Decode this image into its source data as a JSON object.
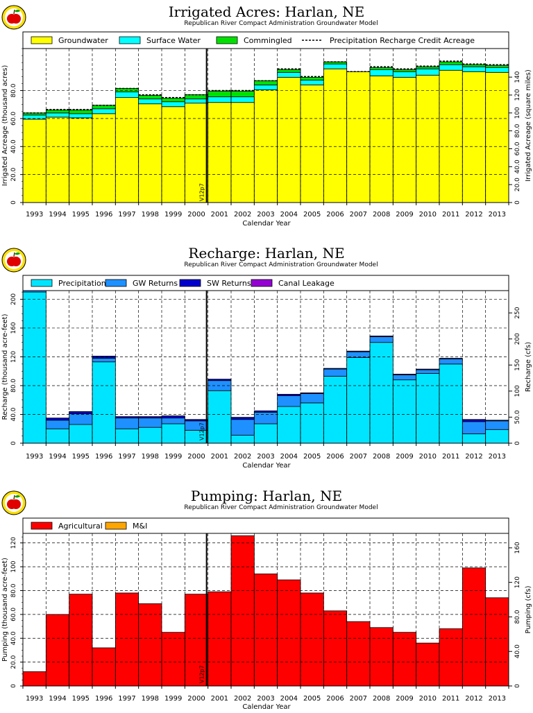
{
  "x_axis_label": "Calendar Year",
  "subtitle": "Republican River Compact Administration Groundwater Model",
  "version_marker": "V12p7",
  "colors": {
    "groundwater": "#ffff00",
    "surface_water": "#00ffff",
    "commingled": "#00e000",
    "precipitation": "#00e5ff",
    "gw_returns": "#1e90ff",
    "sw_returns": "#0000cd",
    "canal_leakage": "#9400d3",
    "agricultural": "#ff0000",
    "mi": "#ffa500",
    "version_line": "#000000",
    "grid": "#000000"
  },
  "chart_data": [
    {
      "id": "irrigated",
      "type": "area",
      "title": "Irrigated Acres: Harlan, NE",
      "subtitle": "Republican River Compact Administration Groundwater Model",
      "xlabel": "Calendar Year",
      "ylabel": "Irrigated Acreage (thousand acres)",
      "y2label": "Irrigated Acreage (square miles)",
      "categories": [
        "1993",
        "1994",
        "1995",
        "1996",
        "1997",
        "1998",
        "1999",
        "2000",
        "2001",
        "2002",
        "2003",
        "2004",
        "2005",
        "2006",
        "2007",
        "2008",
        "2009",
        "2010",
        "2011",
        "2012",
        "2013"
      ],
      "ylim": [
        0,
        110
      ],
      "yticks": [
        0,
        20,
        40,
        60,
        80
      ],
      "yticklabels": [
        "0",
        "20.0",
        "40.0",
        "60.0",
        "80.0"
      ],
      "y2ticks": [
        0,
        20,
        40,
        60,
        80,
        100,
        120,
        140
      ],
      "y2ticklabels": [
        "0",
        "20.0",
        "40.0",
        "60.0",
        "80.0",
        "100",
        "120",
        "140"
      ],
      "y2scale": 1.5625,
      "series": [
        {
          "name": "Groundwater",
          "color_key": "groundwater",
          "values": [
            59.5,
            61,
            60.5,
            63.5,
            75,
            70.5,
            68.5,
            71,
            71.5,
            71.5,
            80.5,
            89.5,
            84,
            95.5,
            93.5,
            90.5,
            89.5,
            91,
            94.5,
            93.5,
            93
          ]
        },
        {
          "name": "Surface Water",
          "color_key": "surface_water",
          "values": [
            3,
            3,
            3,
            3.5,
            4,
            3.5,
            3.5,
            3,
            4,
            4,
            3.5,
            3.5,
            3.5,
            3.5,
            0,
            4.5,
            4,
            4.5,
            4,
            3.5,
            3.5
          ]
        },
        {
          "name": "Commingled",
          "color_key": "commingled",
          "values": [
            1.5,
            2,
            2.5,
            2.5,
            2.5,
            2.5,
            2.5,
            3,
            4,
            4,
            3,
            2,
            2,
            1.5,
            0,
            1.5,
            1.5,
            1.5,
            2,
            1.5,
            1.5
          ]
        }
      ],
      "line_series": {
        "name": "Precipitation Recharge Credit Acreage",
        "values": [
          64,
          66.5,
          66.5,
          69.5,
          81.5,
          77,
          75,
          77,
          80,
          80,
          87,
          95.5,
          90,
          100.5,
          93.5,
          97,
          95.5,
          97.5,
          101,
          99,
          98.5
        ]
      }
    },
    {
      "id": "recharge",
      "type": "area",
      "title": "Recharge: Harlan, NE",
      "subtitle": "Republican River Compact Administration Groundwater Model",
      "xlabel": "Calendar Year",
      "ylabel": "Recharge (thousand acre-feet)",
      "y2label": "Recharge (cfs)",
      "categories": [
        "1993",
        "1994",
        "1995",
        "1996",
        "1997",
        "1998",
        "1999",
        "2000",
        "2001",
        "2002",
        "2003",
        "2004",
        "2005",
        "2006",
        "2007",
        "2008",
        "2009",
        "2010",
        "2011",
        "2012",
        "2013"
      ],
      "ylim": [
        0,
        212
      ],
      "yticks": [
        0,
        40,
        80,
        120,
        160,
        200
      ],
      "yticklabels": [
        "0",
        "40.0",
        "80.0",
        "120",
        "160",
        "200"
      ],
      "y2ticks": [
        0,
        50,
        100,
        150,
        200,
        250
      ],
      "y2ticklabels": [
        "0",
        "50.0",
        "100",
        "150",
        "200",
        "250"
      ],
      "y2scale": 1.381,
      "series": [
        {
          "name": "Precipitation",
          "color_key": "precipitation",
          "values": [
            210,
            20,
            26,
            113,
            20,
            22,
            27,
            18,
            73,
            11,
            27,
            51,
            56,
            93,
            119,
            140,
            88,
            97,
            110,
            13,
            19
          ]
        },
        {
          "name": "GW Returns",
          "color_key": "gw_returns",
          "values": [
            2,
            12,
            15,
            5,
            15,
            13,
            8,
            13,
            14,
            22,
            16,
            15,
            13,
            10,
            8,
            8,
            7,
            5,
            7,
            17,
            12
          ]
        },
        {
          "name": "SW Returns",
          "color_key": "sw_returns",
          "values": [
            0,
            3,
            3,
            3,
            2,
            2,
            3,
            2,
            2,
            3,
            2,
            2,
            1,
            1,
            1,
            1,
            1,
            1,
            1,
            3,
            1
          ]
        },
        {
          "name": "Canal Leakage",
          "color_key": "canal_leakage",
          "values": [
            0,
            0,
            0,
            0,
            0,
            0,
            0,
            0,
            0,
            0,
            0,
            0,
            0,
            0,
            0,
            0,
            0,
            0,
            0,
            0,
            0
          ]
        }
      ]
    },
    {
      "id": "pumping",
      "type": "area",
      "title": "Pumping: Harlan, NE",
      "subtitle": "Republican River Compact Administration Groundwater Model",
      "xlabel": "Calendar Year",
      "ylabel": "Pumping (thousand acre-feet)",
      "y2label": "Pumping (cfs)",
      "categories": [
        "1993",
        "1994",
        "1995",
        "1996",
        "1997",
        "1998",
        "1999",
        "2000",
        "2001",
        "2002",
        "2003",
        "2004",
        "2005",
        "2006",
        "2007",
        "2008",
        "2009",
        "2010",
        "2011",
        "2012",
        "2013"
      ],
      "ylim": [
        0,
        128
      ],
      "yticks": [
        0,
        20,
        40,
        60,
        80,
        100,
        120
      ],
      "yticklabels": [
        "0",
        "20.0",
        "40.0",
        "60.0",
        "80.0",
        "100",
        "120"
      ],
      "y2ticks": [
        0,
        40,
        80,
        120,
        160
      ],
      "y2ticklabels": [
        "0",
        "40.0",
        "80.0",
        "120",
        "160"
      ],
      "y2scale": 1.381,
      "series": [
        {
          "name": "Agricultural",
          "color_key": "agricultural",
          "values": [
            12,
            60,
            77,
            32,
            78,
            69,
            45,
            77,
            79,
            126,
            94,
            89,
            78,
            63,
            54,
            49,
            45,
            36,
            48,
            99,
            74
          ]
        },
        {
          "name": "M&I",
          "color_key": "mi",
          "values": [
            0,
            0,
            0,
            0,
            0,
            0,
            0,
            0,
            0,
            0,
            0,
            0,
            0,
            0,
            0,
            0,
            0,
            0,
            0,
            0,
            0
          ]
        }
      ]
    }
  ]
}
